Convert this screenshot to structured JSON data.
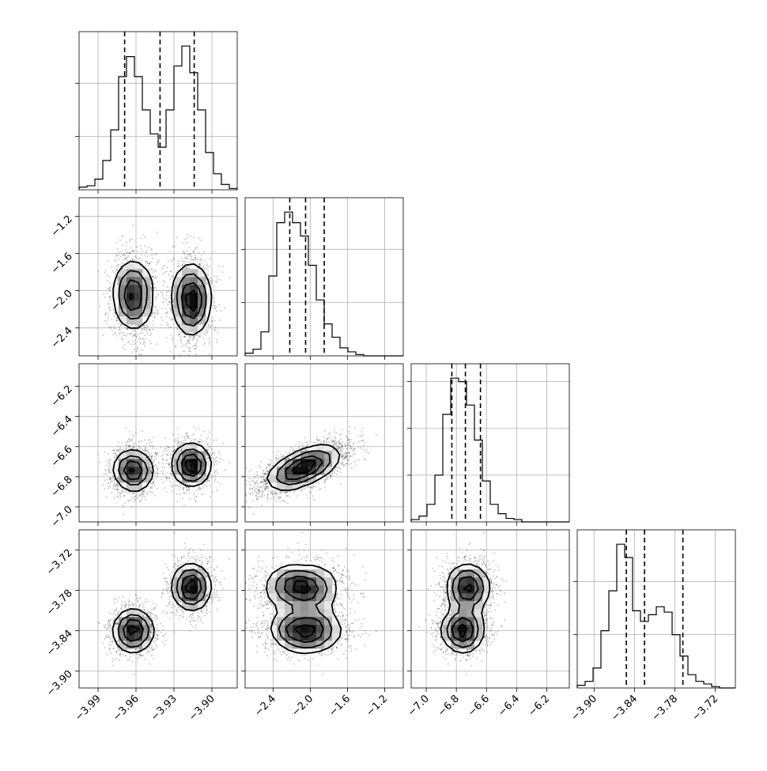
{
  "chart_data": {
    "type": "corner",
    "params": [
      {
        "range": [
          -4.005,
          -3.88
        ],
        "ticks": [
          -3.99,
          -3.96,
          -3.93,
          -3.9
        ],
        "tick_labels": [
          "−3.99",
          "−3.96",
          "−3.93",
          "−3.90"
        ],
        "quantiles": [
          -3.969,
          -3.941,
          -3.914
        ]
      },
      {
        "range": [
          -2.7,
          -1.0
        ],
        "ticks": [
          -2.4,
          -2.0,
          -1.6,
          -1.2
        ],
        "tick_labels": [
          "−2.4",
          "−2.0",
          "−1.6",
          "−1.2"
        ],
        "quantiles": [
          -2.22,
          -2.05,
          -1.85
        ]
      },
      {
        "range": [
          -7.1,
          -6.05
        ],
        "ticks": [
          -7.0,
          -6.8,
          -6.6,
          -6.4,
          -6.2
        ],
        "tick_labels": [
          "−7.0",
          "−6.8",
          "−6.6",
          "−6.4",
          "−6.2"
        ],
        "quantiles": [
          -6.83,
          -6.74,
          -6.64
        ]
      },
      {
        "range": [
          -3.925,
          -3.69
        ],
        "ticks": [
          -3.9,
          -3.84,
          -3.78,
          -3.72
        ],
        "tick_labels": [
          "−3.90",
          "−3.84",
          "−3.78",
          "−3.72"
        ],
        "quantiles": [
          -3.852,
          -3.825,
          -3.768
        ]
      }
    ],
    "histograms": [
      [
        2,
        3,
        8,
        22,
        45,
        85,
        100,
        85,
        60,
        42,
        32,
        60,
        93,
        108,
        88,
        60,
        28,
        12,
        4,
        1
      ],
      [
        2,
        5,
        18,
        60,
        100,
        108,
        100,
        90,
        68,
        42,
        24,
        14,
        6,
        3,
        1,
        0,
        0,
        0,
        0,
        0
      ],
      [
        2,
        5,
        15,
        40,
        92,
        123,
        120,
        100,
        70,
        35,
        15,
        7,
        3,
        2,
        0,
        0,
        0,
        0,
        0,
        0
      ],
      [
        2,
        5,
        15,
        43,
        73,
        108,
        98,
        58,
        50,
        55,
        61,
        57,
        40,
        24,
        10,
        5,
        3,
        1,
        0,
        0
      ]
    ],
    "components": [
      {
        "w": 0.5,
        "mean": [
          -3.962,
          -2.05,
          -6.76,
          -3.84
        ],
        "sd": [
          0.008,
          0.2,
          0.08,
          0.018
        ],
        "rho12": 0.7
      },
      {
        "w": 0.5,
        "mean": [
          -3.916,
          -2.1,
          -6.72,
          -3.775
        ],
        "sd": [
          0.0075,
          0.2,
          0.08,
          0.02
        ],
        "rho12": 0.7
      }
    ],
    "grid": true,
    "quantile_style": "dashed"
  }
}
